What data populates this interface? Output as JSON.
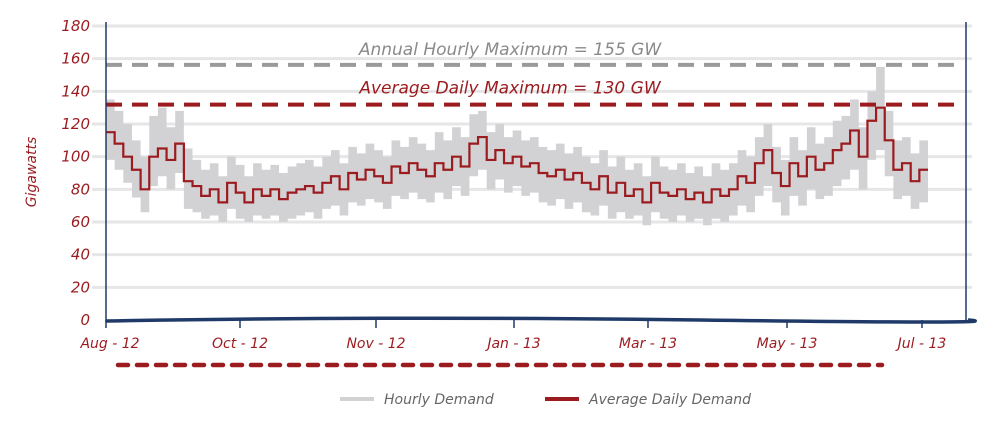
{
  "chart_data": {
    "type": "line",
    "title": "",
    "ylabel": "Gigawatts",
    "xlabel": "",
    "ylim": [
      0,
      180
    ],
    "yticks": [
      "0",
      "20",
      "40",
      "60",
      "80",
      "100",
      "120",
      "140",
      "160",
      "180"
    ],
    "xticks": [
      "Aug - 12",
      "Oct - 12",
      "Nov - 12",
      "Jan - 13",
      "Mar - 13",
      "May - 13",
      "Jul - 13"
    ],
    "grid": true,
    "legend_position": "bottom",
    "annotations": {
      "annual_max_label": "Annual Hourly Maximum = 155 GW",
      "annual_max_value": 155,
      "avg_daily_max_label": "Average Daily Maximum = 130 GW",
      "avg_daily_max_value": 130
    },
    "series": [
      {
        "name": "Hourly Demand",
        "color": "#d2d2d5",
        "max": [
          135,
          128,
          120,
          110,
          100,
          125,
          130,
          118,
          128,
          105,
          98,
          92,
          96,
          88,
          100,
          95,
          88,
          96,
          92,
          95,
          90,
          94,
          96,
          98,
          94,
          100,
          104,
          96,
          106,
          102,
          108,
          104,
          100,
          110,
          106,
          112,
          108,
          104,
          115,
          110,
          118,
          112,
          126,
          128,
          115,
          120,
          112,
          116,
          110,
          112,
          106,
          104,
          108,
          102,
          106,
          100,
          96,
          104,
          94,
          100,
          92,
          96,
          88,
          100,
          94,
          92,
          96,
          90,
          94,
          88,
          96,
          92,
          96,
          104,
          100,
          112,
          120,
          106,
          98,
          112,
          104,
          118,
          108,
          112,
          122,
          125,
          135,
          118,
          140,
          155,
          128,
          110,
          112,
          102,
          110
        ],
        "min": [
          98,
          92,
          84,
          75,
          66,
          82,
          88,
          80,
          90,
          68,
          66,
          62,
          64,
          60,
          68,
          62,
          60,
          64,
          62,
          64,
          60,
          62,
          64,
          66,
          62,
          68,
          70,
          64,
          72,
          70,
          74,
          72,
          68,
          76,
          74,
          78,
          74,
          72,
          78,
          74,
          82,
          76,
          88,
          92,
          80,
          86,
          78,
          82,
          76,
          78,
          72,
          70,
          74,
          68,
          72,
          66,
          64,
          70,
          62,
          66,
          62,
          64,
          58,
          66,
          62,
          60,
          64,
          60,
          62,
          58,
          62,
          60,
          64,
          70,
          66,
          76,
          82,
          72,
          64,
          76,
          70,
          80,
          74,
          76,
          82,
          86,
          92,
          80,
          98,
          104,
          88,
          74,
          76,
          68,
          72
        ]
      },
      {
        "name": "Average Daily Demand",
        "color": "#9b1b1f",
        "values": [
          115,
          108,
          100,
          92,
          80,
          100,
          105,
          98,
          108,
          85,
          82,
          76,
          80,
          72,
          84,
          78,
          72,
          80,
          76,
          80,
          74,
          78,
          80,
          82,
          78,
          84,
          88,
          80,
          90,
          86,
          92,
          88,
          84,
          94,
          90,
          96,
          92,
          88,
          96,
          92,
          100,
          94,
          108,
          112,
          98,
          104,
          96,
          100,
          94,
          96,
          90,
          88,
          92,
          86,
          90,
          84,
          80,
          88,
          78,
          84,
          76,
          80,
          72,
          84,
          78,
          76,
          80,
          74,
          78,
          72,
          80,
          76,
          80,
          88,
          84,
          96,
          104,
          90,
          82,
          96,
          88,
          100,
          92,
          96,
          104,
          108,
          116,
          100,
          122,
          130,
          110,
          92,
          96,
          85,
          92
        ]
      }
    ]
  }
}
